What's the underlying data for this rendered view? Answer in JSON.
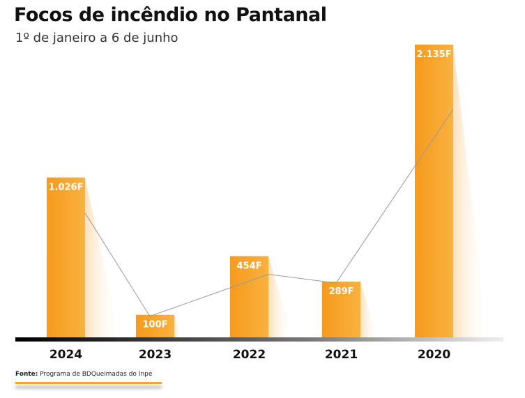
{
  "chart_data": {
    "type": "bar",
    "title": "Focos de incêndio no Pantanal",
    "subtitle": "1º de janeiro a 6 de junho",
    "categories": [
      "2024",
      "2023",
      "2022",
      "2021",
      "2020"
    ],
    "values": [
      1026,
      100,
      454,
      289,
      2135
    ],
    "data_labels": [
      "1.026F",
      "100F",
      "454F",
      "289F",
      "2.135F"
    ],
    "xlabel": "",
    "ylabel": "",
    "grid": false,
    "bar_color": "#f7a22a",
    "source_label": "Fonte:",
    "source_text": "Programa de BDQueimadas do Inpe"
  }
}
